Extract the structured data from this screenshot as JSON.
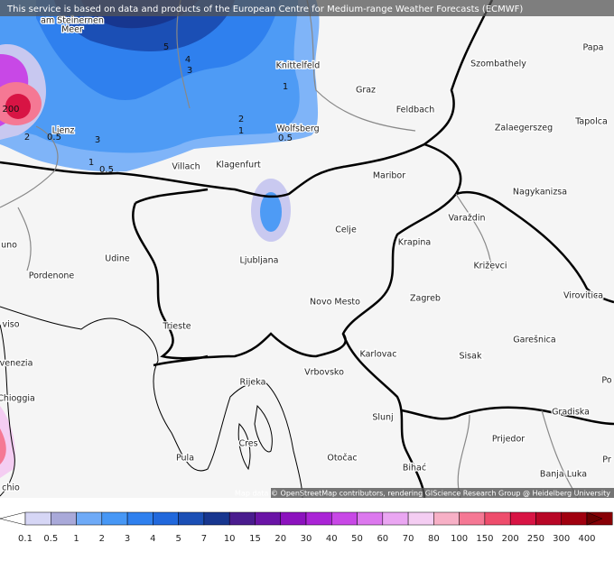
{
  "header": {
    "notice": "This service is based on data and products of the European Centre for Medium-range Weather Forecasts (ECMWF)"
  },
  "places": [
    "am Steinernen",
    "Meer",
    "Knittelfeld",
    "Graz",
    "Feldbach",
    "Szombathely",
    "Papa",
    "Tapolca",
    "Zalaegerszeg",
    "Wolfsberg",
    "Lienz",
    "Villach",
    "Klagenfurt",
    "Maribor",
    "Nagykanizsa",
    "Varaždin",
    "Celje",
    "Krapina",
    "uno",
    "Udine",
    "Ljubljana",
    "Križevci",
    "Pordenone",
    "Novo Mesto",
    "Zagreb",
    "Virovitica",
    "viso",
    "Trieste",
    "Garešnica",
    "Karlovac",
    "Sisak",
    "venezia",
    "Vrbovsko",
    "Rijeka",
    "Chioggia",
    "Gradiska",
    "Slunj",
    "Prijedor",
    "Cres",
    "Pula",
    "Otočac",
    "Bihać",
    "Banja Luka",
    "chio",
    "Po",
    "Pr"
  ],
  "contour_labels": [
    "5",
    "4",
    "3",
    "1",
    "2",
    "1",
    "0.5",
    "200",
    "0.5",
    "2",
    "3",
    "1",
    "0.5"
  ],
  "attribution": "Map data © OpenStreetMap contributors, rendering GIScience Research Group @ Heidelberg University",
  "legend": {
    "labels": [
      "0.1",
      "0.5",
      "1",
      "2",
      "3",
      "4",
      "5",
      "7",
      "10",
      "15",
      "20",
      "30",
      "40",
      "50",
      "60",
      "70",
      "80",
      "100",
      "150",
      "200",
      "250",
      "300",
      "400"
    ],
    "colors": [
      "#ffffff",
      "#d6d6f5",
      "#a9a9d9",
      "#6eaaf7",
      "#4797f5",
      "#2f80ee",
      "#2168dc",
      "#1b4fb5",
      "#17368f",
      "#4a1c8e",
      "#6a14a6",
      "#8c12be",
      "#aa24d6",
      "#c848e6",
      "#dc78ee",
      "#eaa6f2",
      "#f4cdf2",
      "#f7b0c6",
      "#f57894",
      "#ee4d6c",
      "#d81444",
      "#b80626",
      "#a0000f",
      "#880006",
      "#6a0000"
    ]
  }
}
